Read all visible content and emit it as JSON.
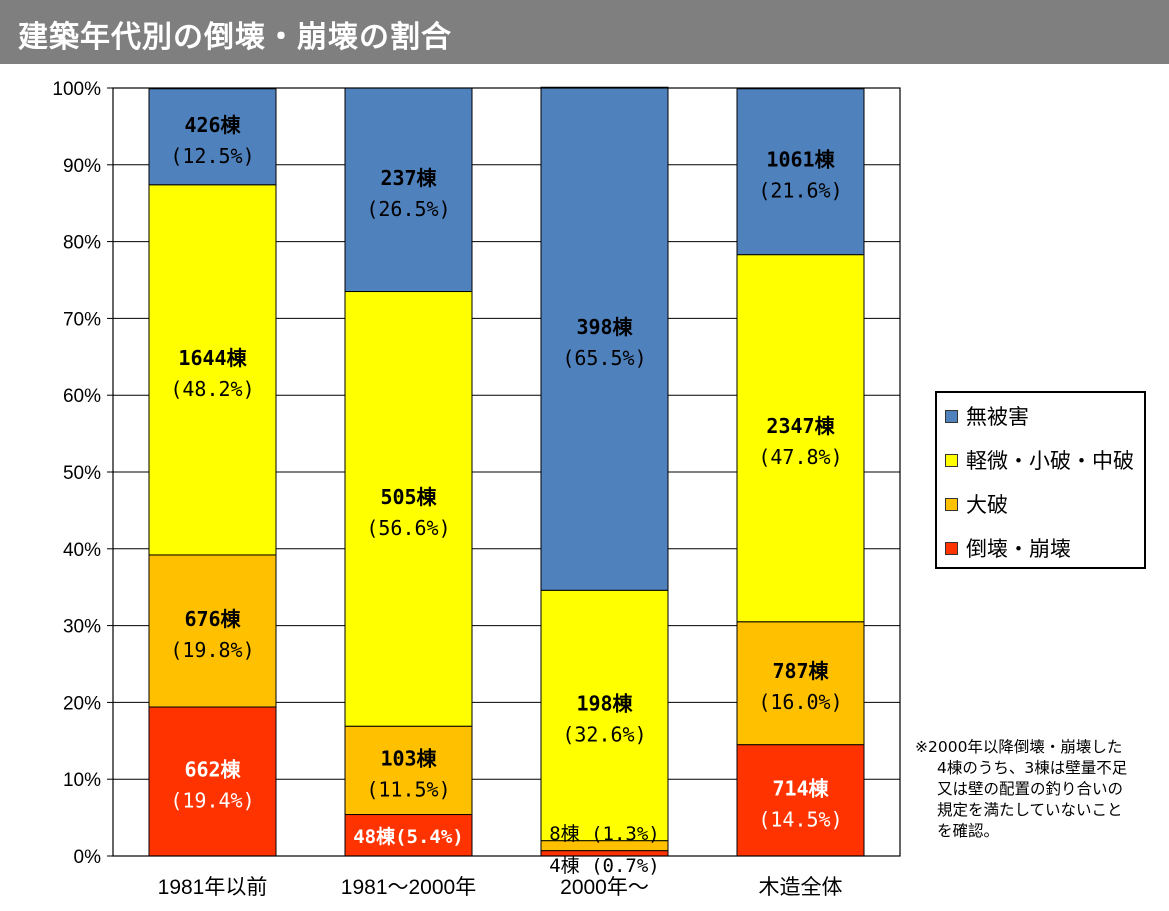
{
  "title": "建築年代別の倒壊・崩壊の割合",
  "legend": {
    "items": [
      {
        "label": "無被害",
        "color": "#4f81bd"
      },
      {
        "label": "軽微・小破・中破",
        "color": "#ffff00"
      },
      {
        "label": "大破",
        "color": "#ffc000"
      },
      {
        "label": "倒壊・崩壊",
        "color": "#ff3300"
      }
    ]
  },
  "note": {
    "lines": [
      "※2000年以降倒壊・崩壊した",
      "4棟のうち、3棟は壁量不足",
      "又は壁の配置の釣り合いの",
      "規定を満たしていないこと",
      "を確認。"
    ]
  },
  "chart_data": {
    "type": "bar",
    "stacked": true,
    "categories": [
      "1981年以前",
      "1981～2000年",
      "2000年～",
      "木造全体"
    ],
    "ylim": [
      0,
      100
    ],
    "yticks": [
      "0%",
      "10%",
      "20%",
      "30%",
      "40%",
      "50%",
      "60%",
      "70%",
      "80%",
      "90%",
      "100%"
    ],
    "grid": true,
    "legend_position": "right",
    "series": [
      {
        "name": "倒壊・崩壊",
        "color": "#ff3300",
        "values": [
          19.4,
          5.4,
          0.7,
          14.5
        ],
        "counts": [
          "662棟",
          "48棟",
          "4棟",
          "714棟"
        ],
        "pcts": [
          "(19.4%)",
          "(5.4%)",
          "(0.7%)",
          "(14.5%)"
        ]
      },
      {
        "name": "大破",
        "color": "#ffc000",
        "values": [
          19.8,
          11.5,
          1.3,
          16.0
        ],
        "counts": [
          "676棟",
          "103棟",
          "8棟",
          "787棟"
        ],
        "pcts": [
          "(19.8%)",
          "(11.5%)",
          "(1.3%)",
          "(16.0%)"
        ]
      },
      {
        "name": "軽微・小破・中破",
        "color": "#ffff00",
        "values": [
          48.2,
          56.6,
          32.6,
          47.8
        ],
        "counts": [
          "1644棟",
          "505棟",
          "198棟",
          "2347棟"
        ],
        "pcts": [
          "(48.2%)",
          "(56.6%)",
          "(32.6%)",
          "(47.8%)"
        ]
      },
      {
        "name": "無被害",
        "color": "#4f81bd",
        "values": [
          12.5,
          26.5,
          65.5,
          21.6
        ],
        "counts": [
          "426棟",
          "237棟",
          "398棟",
          "1061棟"
        ],
        "pcts": [
          "(12.5%)",
          "(26.5%)",
          "(65.5%)",
          "(21.6%)"
        ]
      }
    ]
  }
}
